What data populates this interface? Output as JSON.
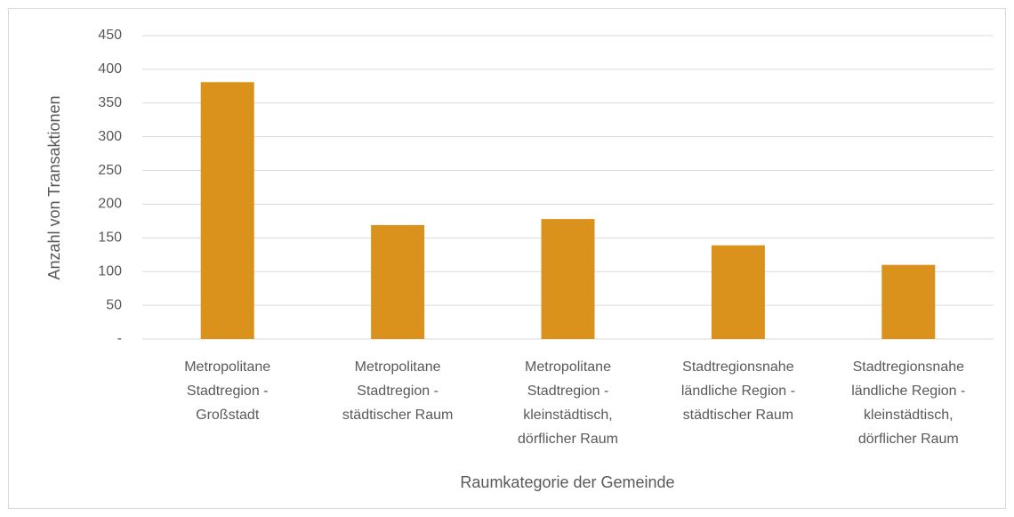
{
  "chart_data": {
    "type": "bar",
    "y_axis_label": "Anzahl von Transaktionen",
    "x_axis_label": "Raumkategorie der Gemeinde",
    "categories": [
      [
        "Metropolitane",
        "Stadtregion -",
        "Großstadt"
      ],
      [
        "Metropolitane",
        "Stadtregion -",
        "städtischer Raum"
      ],
      [
        "Metropolitane",
        "Stadtregion -",
        "kleinstädtisch,",
        "dörflicher Raum"
      ],
      [
        "Stadtregionsnahe",
        "ländliche Region -",
        "städtischer Raum"
      ],
      [
        "Stadtregionsnahe",
        "ländliche Region -",
        "kleinstädtisch,",
        "dörflicher Raum"
      ]
    ],
    "values": [
      381,
      169,
      178,
      139,
      110
    ],
    "color": "#da921c",
    "ylim": [
      0,
      450
    ],
    "yticks": [
      {
        "value": 0,
        "label": "-"
      },
      50,
      100,
      150,
      200,
      250,
      300,
      350,
      400,
      450
    ],
    "grid": true
  }
}
